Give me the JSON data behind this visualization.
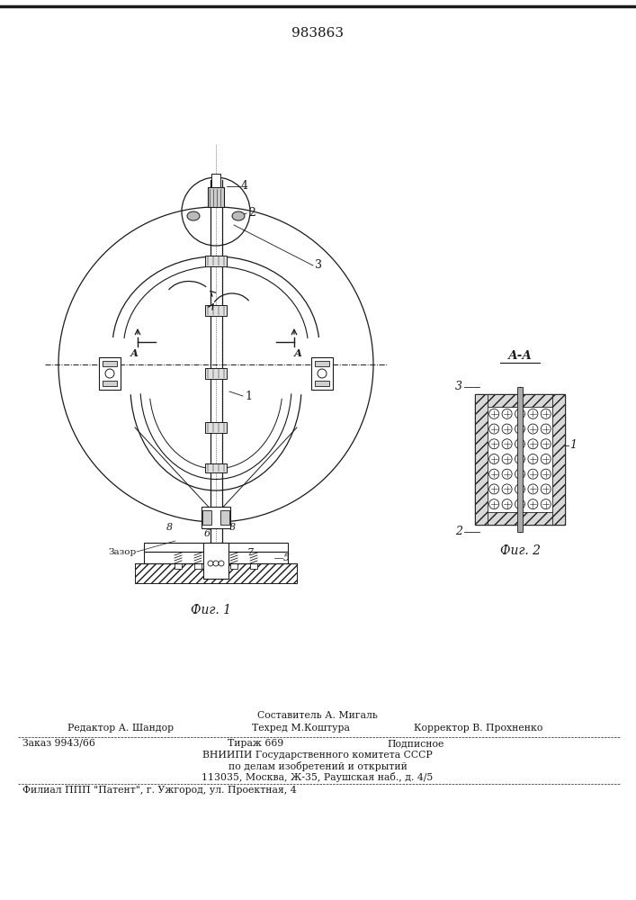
{
  "patent_number": "983863",
  "fig1_caption": "Фиг. 1",
  "fig2_caption": "Фиг. 2",
  "section_label": "А-А",
  "line_color": "#1a1a1a",
  "fig_width": 7.07,
  "fig_height": 10.0
}
